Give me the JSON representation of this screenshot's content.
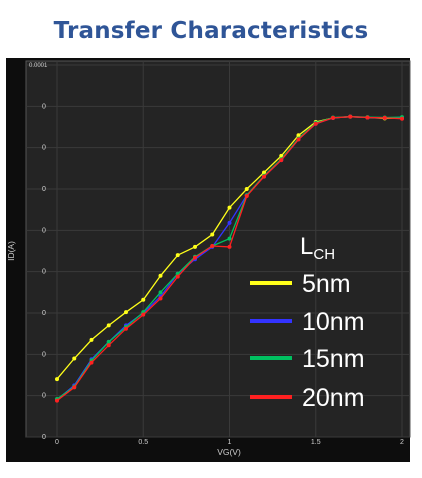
{
  "page_title": "Transfer Characteristics",
  "chart_data": {
    "type": "line",
    "title": "Transfer Characteristics",
    "xlabel": "VG(V)",
    "ylabel": "ID(A)",
    "log_scale_y": true,
    "y_top_label": "0.0001",
    "y_tick_labels": [
      "0",
      "0",
      "0",
      "0",
      "0",
      "0",
      "0",
      "0",
      "0"
    ],
    "x_ticks": [
      0,
      0.5,
      1,
      1.5,
      2
    ],
    "x_tick_labels": [
      "0",
      "0.5",
      "1",
      "1.5",
      "2"
    ],
    "xlim": [
      0,
      2
    ],
    "y_display_range_decades": [
      0,
      9
    ],
    "grid": true,
    "legend_title_main": "L",
    "legend_title_sub": "CH",
    "legend_placement": "right",
    "x": [
      0,
      0.1,
      0.2,
      0.3,
      0.4,
      0.5,
      0.6,
      0.7,
      0.8,
      0.9,
      1.0,
      1.1,
      1.2,
      1.3,
      1.4,
      1.5,
      1.6,
      1.7,
      1.8,
      1.9,
      2.0
    ],
    "series": [
      {
        "name": "5nm",
        "color": "#ffff1a",
        "values": [
          1.4,
          1.9,
          2.35,
          2.7,
          3.02,
          3.32,
          3.9,
          4.4,
          4.6,
          4.9,
          5.55,
          6.0,
          6.4,
          6.8,
          7.3,
          7.62,
          7.72,
          7.75,
          7.73,
          7.71,
          7.72
        ]
      },
      {
        "name": "10nm",
        "color": "#3333ff",
        "values": [
          0.9,
          1.25,
          1.88,
          2.3,
          2.7,
          3.0,
          3.4,
          3.95,
          4.3,
          4.6,
          5.18,
          5.85,
          6.3,
          6.7,
          7.2,
          7.58,
          7.72,
          7.75,
          7.73,
          7.72,
          7.73
        ]
      },
      {
        "name": "15nm",
        "color": "#00c060",
        "values": [
          0.92,
          1.22,
          1.85,
          2.3,
          2.66,
          3.02,
          3.5,
          3.95,
          4.36,
          4.62,
          4.8,
          5.85,
          6.32,
          6.72,
          7.22,
          7.6,
          7.73,
          7.75,
          7.74,
          7.73,
          7.74
        ]
      },
      {
        "name": "20nm",
        "color": "#ff2020",
        "values": [
          0.88,
          1.2,
          1.8,
          2.22,
          2.62,
          2.96,
          3.35,
          3.88,
          4.34,
          4.62,
          4.6,
          5.83,
          6.3,
          6.7,
          7.2,
          7.58,
          7.72,
          7.75,
          7.73,
          7.72,
          7.7
        ]
      }
    ]
  }
}
